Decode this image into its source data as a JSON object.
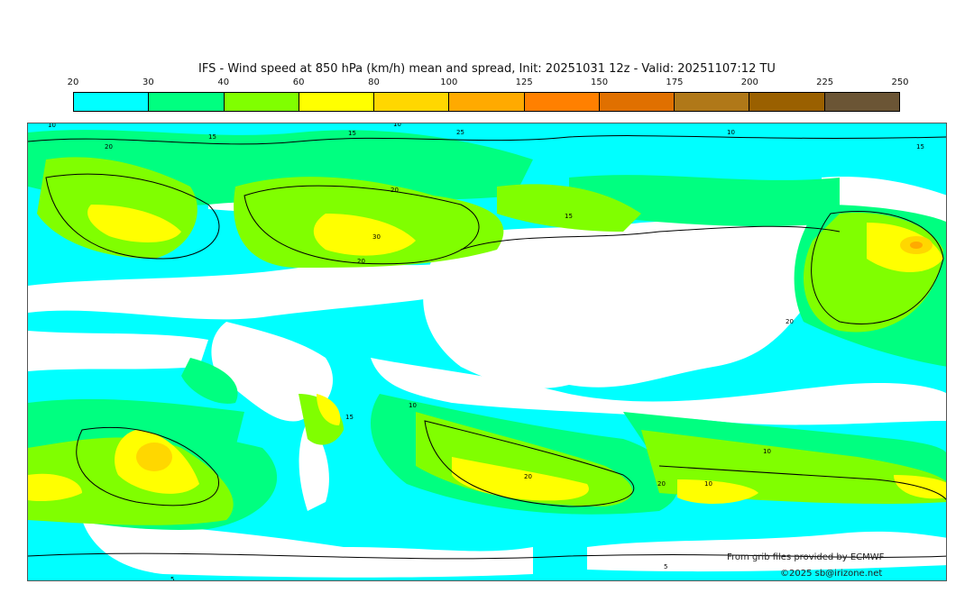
{
  "title": "IFS - Wind speed at 850 hPa (km/h) mean and spread, Init: 20251031 12z - Valid: 20251107:12 TU",
  "colorbar": {
    "ticks": [
      "20",
      "30",
      "40",
      "60",
      "80",
      "100",
      "125",
      "150",
      "175",
      "200",
      "225",
      "250"
    ],
    "colors": [
      "#00ffff",
      "#00ff80",
      "#80ff00",
      "#ffff00",
      "#ffd700",
      "#ffaa00",
      "#ff8000",
      "#e07000",
      "#b07818",
      "#9a6000",
      "#6b5535"
    ]
  },
  "map": {
    "contour_labels": [
      "10",
      "15",
      "20",
      "15",
      "10",
      "20",
      "30",
      "20",
      "15",
      "10",
      "15",
      "20",
      "25",
      "10",
      "15",
      "20",
      "10",
      "20",
      "10",
      "5",
      "5"
    ]
  },
  "credits": {
    "source": "From grib files provided by ECMWF",
    "copyright": "©2025 sb@irizone.net"
  }
}
